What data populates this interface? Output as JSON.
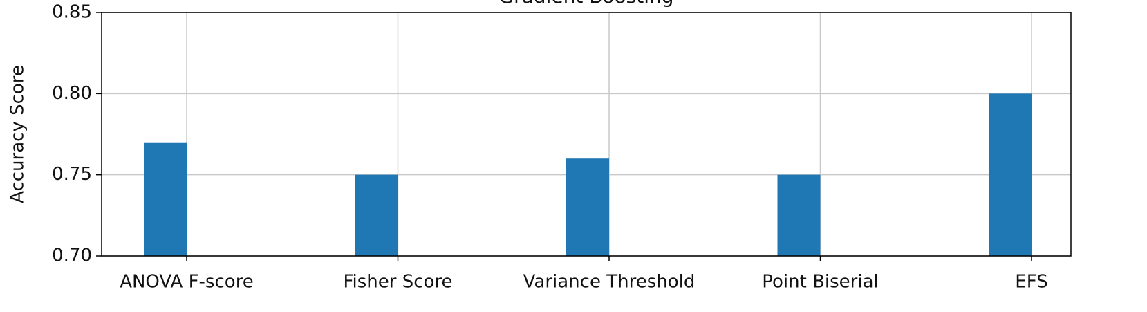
{
  "chart_data": {
    "type": "bar",
    "title": "Gradient Boosting",
    "ylabel": "Accuracy Score",
    "categories": [
      "ANOVA F-score",
      "Fisher Score",
      "Variance Threshold",
      "Point Biserial",
      "EFS"
    ],
    "values": [
      0.77,
      0.75,
      0.76,
      0.75,
      0.8
    ],
    "color": "#1f77b4",
    "ylim": [
      0.7,
      0.85
    ],
    "yticks": [
      {
        "value": 0.7,
        "label": "0.70"
      },
      0.75,
      {
        "value": 0.8,
        "label": "0.80"
      },
      0.85
    ],
    "grid": true
  }
}
